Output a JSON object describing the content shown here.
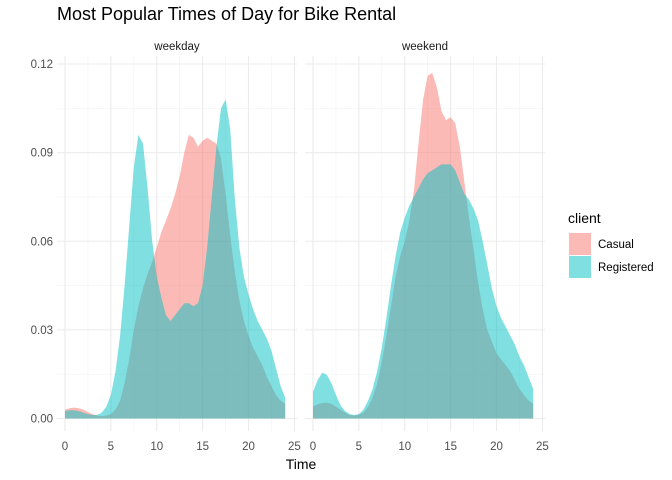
{
  "chart_data": {
    "type": "area",
    "title": "Most Popular Times of Day for Bike Rental",
    "xlabel": "Time",
    "ylabel": "",
    "xlim": [
      0,
      25
    ],
    "ylim": [
      0,
      0.12
    ],
    "x_ticks": [
      "0",
      "5",
      "10",
      "15",
      "20",
      "25"
    ],
    "y_ticks": [
      "0.00",
      "0.03",
      "0.06",
      "0.09",
      "0.12"
    ],
    "grid": true,
    "legend": {
      "title": "client",
      "position": "right"
    },
    "colors": {
      "Casual": "#F8766D",
      "Registered": "#00BFC4"
    },
    "panels": [
      {
        "label": "weekday",
        "series": [
          {
            "name": "Casual",
            "x": [
              0,
              0.5,
              1,
              1.5,
              2,
              2.5,
              3,
              3.5,
              4,
              4.5,
              5,
              5.5,
              6,
              6.5,
              7,
              7.5,
              8,
              8.5,
              9,
              9.5,
              10,
              10.5,
              11,
              11.5,
              12,
              12.5,
              13,
              13.5,
              14,
              14.5,
              15,
              15.5,
              16,
              16.5,
              17,
              17.5,
              18,
              18.5,
              19,
              19.5,
              20,
              20.5,
              21,
              21.5,
              22,
              22.5,
              23,
              23.5,
              24
            ],
            "values": [
              0.003,
              0.0035,
              0.0037,
              0.0035,
              0.003,
              0.0022,
              0.0015,
              0.001,
              0.0008,
              0.001,
              0.0015,
              0.003,
              0.006,
              0.012,
              0.02,
              0.03,
              0.038,
              0.044,
              0.049,
              0.053,
              0.058,
              0.063,
              0.067,
              0.071,
              0.076,
              0.082,
              0.09,
              0.096,
              0.095,
              0.092,
              0.094,
              0.095,
              0.094,
              0.093,
              0.088,
              0.076,
              0.062,
              0.05,
              0.04,
              0.033,
              0.028,
              0.024,
              0.021,
              0.018,
              0.014,
              0.011,
              0.008,
              0.006,
              0.005
            ]
          },
          {
            "name": "Registered",
            "x": [
              0,
              0.5,
              1,
              1.5,
              2,
              2.5,
              3,
              3.5,
              4,
              4.5,
              5,
              5.5,
              6,
              6.5,
              7,
              7.5,
              8,
              8.5,
              9,
              9.5,
              10,
              10.5,
              11,
              11.5,
              12,
              12.5,
              13,
              13.5,
              14,
              14.5,
              15,
              15.5,
              16,
              16.5,
              17,
              17.5,
              18,
              18.5,
              19,
              19.5,
              20,
              20.5,
              21,
              21.5,
              22,
              22.5,
              23,
              23.5,
              24
            ],
            "values": [
              0.0025,
              0.0028,
              0.0028,
              0.0025,
              0.002,
              0.0015,
              0.0012,
              0.0012,
              0.002,
              0.004,
              0.008,
              0.016,
              0.028,
              0.045,
              0.065,
              0.085,
              0.096,
              0.093,
              0.078,
              0.06,
              0.048,
              0.041,
              0.035,
              0.033,
              0.035,
              0.037,
              0.039,
              0.039,
              0.038,
              0.039,
              0.045,
              0.058,
              0.075,
              0.092,
              0.105,
              0.108,
              0.098,
              0.075,
              0.058,
              0.048,
              0.042,
              0.037,
              0.033,
              0.03,
              0.027,
              0.023,
              0.017,
              0.011,
              0.007
            ]
          }
        ]
      },
      {
        "label": "weekend",
        "series": [
          {
            "name": "Casual",
            "x": [
              0,
              0.5,
              1,
              1.5,
              2,
              2.5,
              3,
              3.5,
              4,
              4.5,
              5,
              5.5,
              6,
              6.5,
              7,
              7.5,
              8,
              8.5,
              9,
              9.5,
              10,
              10.5,
              11,
              11.5,
              12,
              12.5,
              13,
              13.5,
              14,
              14.5,
              15,
              15.5,
              16,
              16.5,
              17,
              17.5,
              18,
              18.5,
              19,
              19.5,
              20,
              20.5,
              21,
              21.5,
              22,
              22.5,
              23,
              23.5,
              24
            ],
            "values": [
              0.004,
              0.0048,
              0.0052,
              0.0053,
              0.005,
              0.004,
              0.003,
              0.002,
              0.0012,
              0.001,
              0.0013,
              0.002,
              0.004,
              0.007,
              0.012,
              0.019,
              0.028,
              0.038,
              0.048,
              0.055,
              0.06,
              0.067,
              0.077,
              0.093,
              0.108,
              0.116,
              0.117,
              0.112,
              0.104,
              0.101,
              0.102,
              0.1,
              0.092,
              0.08,
              0.068,
              0.057,
              0.046,
              0.037,
              0.03,
              0.026,
              0.022,
              0.02,
              0.018,
              0.016,
              0.013,
              0.01,
              0.008,
              0.006,
              0.005
            ]
          },
          {
            "name": "Registered",
            "x": [
              0,
              0.5,
              1,
              1.5,
              2,
              2.5,
              3,
              3.5,
              4,
              4.5,
              5,
              5.5,
              6,
              6.5,
              7,
              7.5,
              8,
              8.5,
              9,
              9.5,
              10,
              10.5,
              11,
              11.5,
              12,
              12.5,
              13,
              13.5,
              14,
              14.5,
              15,
              15.5,
              16,
              16.5,
              17,
              17.5,
              18,
              18.5,
              19,
              19.5,
              20,
              20.5,
              21,
              21.5,
              22,
              22.5,
              23,
              23.5,
              24
            ],
            "values": [
              0.009,
              0.013,
              0.0155,
              0.0148,
              0.012,
              0.008,
              0.0045,
              0.0025,
              0.0015,
              0.0012,
              0.0015,
              0.003,
              0.006,
              0.01,
              0.016,
              0.024,
              0.034,
              0.045,
              0.055,
              0.063,
              0.068,
              0.072,
              0.075,
              0.078,
              0.081,
              0.083,
              0.084,
              0.085,
              0.086,
              0.086,
              0.086,
              0.084,
              0.08,
              0.076,
              0.074,
              0.071,
              0.067,
              0.06,
              0.052,
              0.044,
              0.038,
              0.034,
              0.031,
              0.028,
              0.025,
              0.021,
              0.018,
              0.014,
              0.01
            ]
          }
        ]
      }
    ]
  }
}
